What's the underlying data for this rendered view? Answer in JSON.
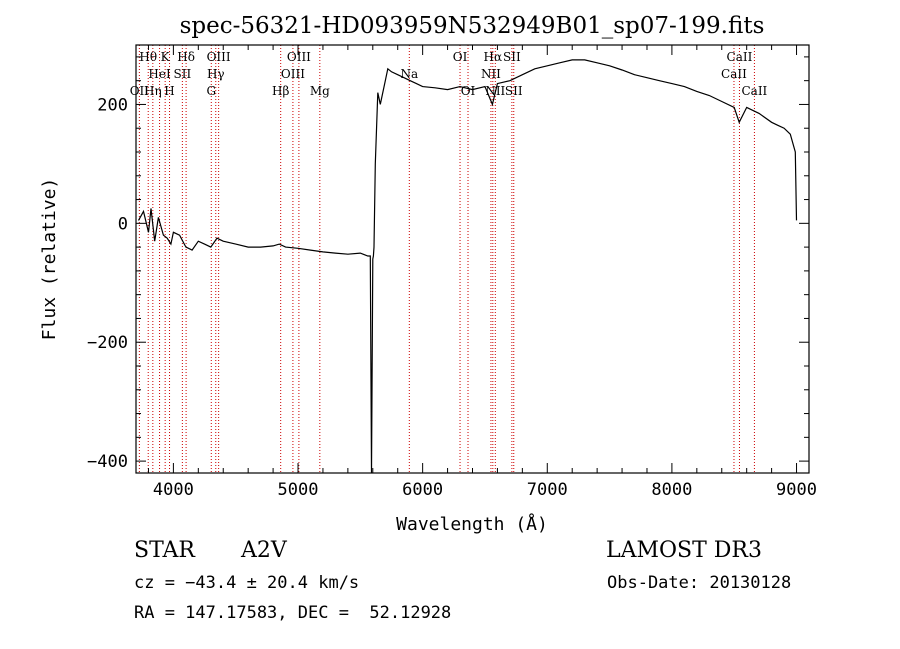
{
  "chart_data": {
    "type": "line",
    "title": "spec-56321-HD093959N532949B01_sp07-199.fits",
    "xlabel": "Wavelength (Å)",
    "ylabel": "Flux (relative)",
    "xlim": [
      3700,
      9100
    ],
    "ylim": [
      -420,
      300
    ],
    "xticks": [
      4000,
      5000,
      6000,
      7000,
      8000,
      9000
    ],
    "xtick_labels": [
      "4000",
      "5000",
      "6000",
      "7000",
      "8000",
      "9000"
    ],
    "yticks": [
      -400,
      -200,
      0,
      200
    ],
    "ytick_labels": [
      "−400",
      "−200",
      "0",
      "200"
    ],
    "grid": false,
    "series": [
      {
        "name": "flux",
        "x": [
          3720,
          3760,
          3800,
          3820,
          3850,
          3880,
          3920,
          3950,
          3980,
          4000,
          4050,
          4100,
          4150,
          4200,
          4250,
          4300,
          4350,
          4400,
          4500,
          4600,
          4700,
          4800,
          4850,
          4900,
          5000,
          5100,
          5200,
          5300,
          5400,
          5500,
          5560,
          5580,
          5590,
          5600,
          5605,
          5610,
          5620,
          5640,
          5660,
          5700,
          5720,
          5750,
          5800,
          5850,
          5900,
          5950,
          6000,
          6100,
          6200,
          6300,
          6400,
          6500,
          6560,
          6600,
          6700,
          6800,
          6900,
          7000,
          7100,
          7200,
          7300,
          7400,
          7500,
          7600,
          7700,
          7800,
          7900,
          8000,
          8100,
          8200,
          8300,
          8400,
          8500,
          8540,
          8600,
          8700,
          8800,
          8850,
          8900,
          8950,
          8990,
          9000
        ],
        "y": [
          5,
          20,
          -15,
          25,
          -30,
          10,
          -20,
          -25,
          -35,
          -15,
          -20,
          -40,
          -45,
          -30,
          -35,
          -40,
          -25,
          -30,
          -35,
          -40,
          -40,
          -38,
          -35,
          -40,
          -42,
          -45,
          -48,
          -50,
          -52,
          -50,
          -55,
          -55,
          -420,
          -60,
          -55,
          -40,
          100,
          220,
          200,
          240,
          260,
          255,
          250,
          245,
          240,
          235,
          230,
          228,
          225,
          230,
          225,
          230,
          200,
          235,
          240,
          250,
          260,
          265,
          270,
          275,
          275,
          270,
          265,
          258,
          250,
          245,
          240,
          235,
          230,
          222,
          215,
          205,
          195,
          170,
          195,
          185,
          170,
          165,
          160,
          150,
          120,
          5
        ]
      }
    ],
    "lines": [
      {
        "name": "OII",
        "wavelength": 3727,
        "label_row": 2
      },
      {
        "name": "Hθ",
        "wavelength": 3798,
        "label_row": 0
      },
      {
        "name": "Hη",
        "wavelength": 3835,
        "label_row": 2
      },
      {
        "name": "HeI",
        "wavelength": 3889,
        "label_row": 1
      },
      {
        "name": "K",
        "wavelength": 3934,
        "label_row": 0
      },
      {
        "name": "H",
        "wavelength": 3969,
        "label_row": 2
      },
      {
        "name": "SII",
        "wavelength": 4072,
        "label_row": 1
      },
      {
        "name": "Hδ",
        "wavelength": 4102,
        "label_row": 0
      },
      {
        "name": "G",
        "wavelength": 4304,
        "label_row": 2
      },
      {
        "name": "Hγ",
        "wavelength": 4340,
        "label_row": 1
      },
      {
        "name": "OIII",
        "wavelength": 4363,
        "label_row": 0
      },
      {
        "name": "Hβ",
        "wavelength": 4861,
        "label_row": 2
      },
      {
        "name": "OIII",
        "wavelength": 4959,
        "label_row": 1
      },
      {
        "name": "OIII",
        "wavelength": 5007,
        "label_row": 0
      },
      {
        "name": "Mg",
        "wavelength": 5175,
        "label_row": 2
      },
      {
        "name": "Na",
        "wavelength": 5893,
        "label_row": 1
      },
      {
        "name": "OI",
        "wavelength": 6300,
        "label_row": 0
      },
      {
        "name": "OI",
        "wavelength": 6364,
        "label_row": 2
      },
      {
        "name": "NII",
        "wavelength": 6548,
        "label_row": 1
      },
      {
        "name": "Hα",
        "wavelength": 6563,
        "label_row": 0
      },
      {
        "name": "NII",
        "wavelength": 6583,
        "label_row": 2
      },
      {
        "name": "SII",
        "wavelength": 6716,
        "label_row": 0
      },
      {
        "name": "SII",
        "wavelength": 6731,
        "label_row": 2
      },
      {
        "name": "CaII",
        "wavelength": 8498,
        "label_row": 1
      },
      {
        "name": "CaII",
        "wavelength": 8542,
        "label_row": 0
      },
      {
        "name": "CaII",
        "wavelength": 8662,
        "label_row": 2
      }
    ]
  },
  "info": {
    "class_label": "STAR",
    "subclass": "A2V",
    "survey": "LAMOST DR3",
    "cz": "cz = −43.4 ± 20.4 km/s",
    "obs_date": "Obs-Date: 20130128",
    "coords": "RA = 147.17583, DEC =  52.12928"
  },
  "colors": {
    "spectrum": "#000000",
    "line_markers": "#cc0000"
  }
}
